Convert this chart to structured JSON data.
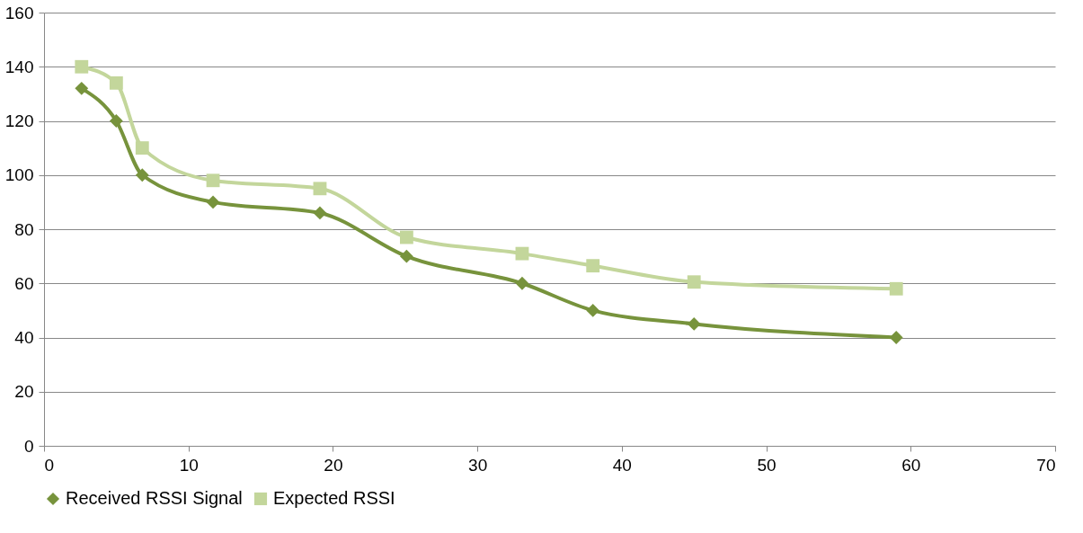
{
  "chart_data": {
    "type": "line",
    "xlim": [
      0,
      70
    ],
    "xticks": [
      0,
      10,
      20,
      30,
      40,
      50,
      60,
      70
    ],
    "ylim": [
      0,
      160
    ],
    "yticks": [
      0,
      20,
      40,
      60,
      80,
      100,
      120,
      140,
      160
    ],
    "grid": "y",
    "legend": "bottom",
    "line_style": "solid",
    "series": [
      {
        "name": "Received RSSI Signal",
        "color": "#77933c",
        "marker": "diamond",
        "x": [
          2.6,
          5.0,
          6.8,
          11.7,
          19.1,
          25.1,
          33.1,
          38.0,
          45.0,
          59.0
        ],
        "values": [
          132,
          120,
          100,
          90,
          86,
          70,
          60,
          50,
          45,
          40
        ]
      },
      {
        "name": "Expected RSSI",
        "color": "#c3d69b",
        "marker": "square",
        "x": [
          2.6,
          5.0,
          6.8,
          11.7,
          19.1,
          25.1,
          33.1,
          38.0,
          45.0,
          59.0
        ],
        "values": [
          140,
          134,
          110,
          98,
          95,
          77,
          71,
          66.5,
          60.5,
          58
        ]
      }
    ]
  }
}
